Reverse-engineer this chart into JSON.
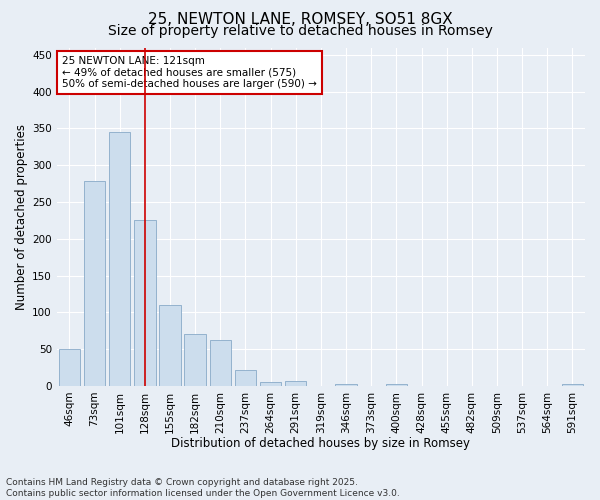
{
  "title": "25, NEWTON LANE, ROMSEY, SO51 8GX",
  "subtitle": "Size of property relative to detached houses in Romsey",
  "xlabel": "Distribution of detached houses by size in Romsey",
  "ylabel": "Number of detached properties",
  "categories": [
    "46sqm",
    "73sqm",
    "101sqm",
    "128sqm",
    "155sqm",
    "182sqm",
    "210sqm",
    "237sqm",
    "264sqm",
    "291sqm",
    "319sqm",
    "346sqm",
    "373sqm",
    "400sqm",
    "428sqm",
    "455sqm",
    "482sqm",
    "509sqm",
    "537sqm",
    "564sqm",
    "591sqm"
  ],
  "values": [
    50,
    278,
    345,
    226,
    110,
    71,
    63,
    22,
    5,
    7,
    0,
    3,
    0,
    3,
    0,
    0,
    0,
    0,
    0,
    0,
    3
  ],
  "bar_color": "#ccdded",
  "bar_edge_color": "#88aac8",
  "red_line_index": 3,
  "annotation_text": "25 NEWTON LANE: 121sqm\n← 49% of detached houses are smaller (575)\n50% of semi-detached houses are larger (590) →",
  "annotation_box_color": "#ffffff",
  "annotation_box_edge": "#cc0000",
  "red_line_color": "#cc0000",
  "ylim": [
    0,
    460
  ],
  "yticks": [
    0,
    50,
    100,
    150,
    200,
    250,
    300,
    350,
    400,
    450
  ],
  "footer_line1": "Contains HM Land Registry data © Crown copyright and database right 2025.",
  "footer_line2": "Contains public sector information licensed under the Open Government Licence v3.0.",
  "bg_color": "#e8eef5",
  "grid_color": "#ffffff",
  "title_fontsize": 11,
  "subtitle_fontsize": 10,
  "axis_label_fontsize": 8.5,
  "tick_fontsize": 7.5,
  "annotation_fontsize": 7.5,
  "footer_fontsize": 6.5
}
